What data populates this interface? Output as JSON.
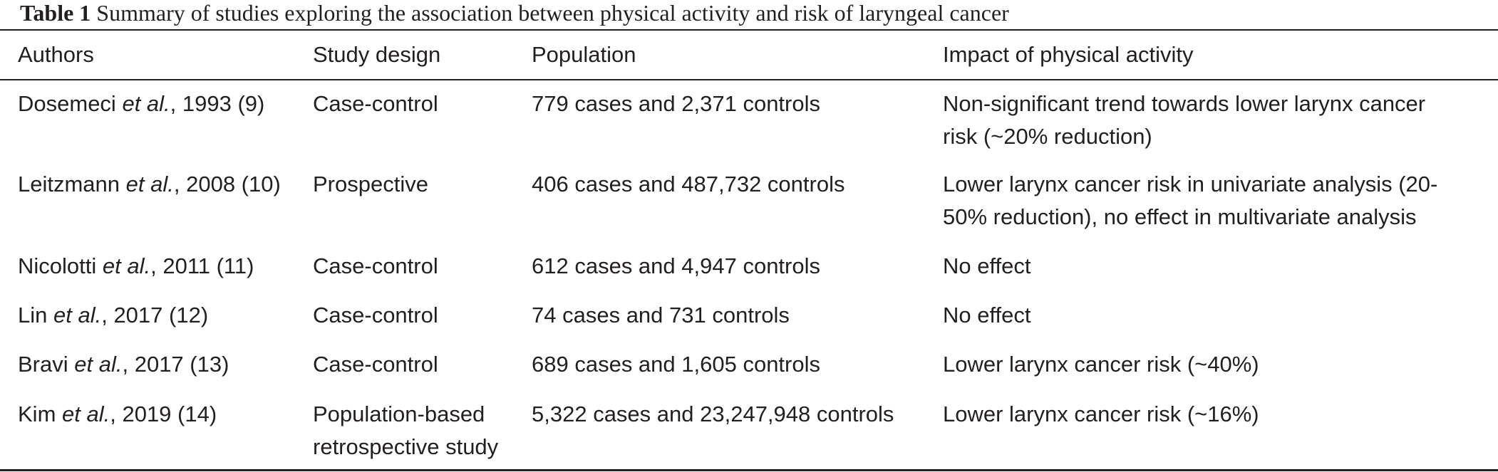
{
  "caption": {
    "label": "Table 1",
    "text": "Summary of studies exploring the association between physical activity and risk of laryngeal cancer"
  },
  "headers": [
    "Authors",
    "Study design",
    "Population",
    "Impact of physical activity"
  ],
  "rows": [
    {
      "author_name": "Dosemeci",
      "author_etal": "et al.",
      "author_rest": ", 1993 (9)",
      "design": "Case-control",
      "population": "779 cases and 2,371 controls",
      "impact_line1": "Non-significant trend towards lower larynx cancer",
      "impact_line2": "risk (~20% reduction)"
    },
    {
      "author_name": "Leitzmann",
      "author_etal": "et al.",
      "author_rest": ", 2008 (10)",
      "design": "Prospective",
      "population": "406 cases and 487,732 controls",
      "impact_line1": "Lower larynx cancer risk in univariate analysis (20-",
      "impact_line2": "50% reduction), no effect in multivariate analysis"
    },
    {
      "author_name": "Nicolotti",
      "author_etal": "et al.",
      "author_rest": ", 2011 (11)",
      "design": "Case-control",
      "population": "612 cases and 4,947 controls",
      "impact_line1": "No effect",
      "impact_line2": ""
    },
    {
      "author_name": "Lin",
      "author_etal": "et al.",
      "author_rest": ", 2017 (12)",
      "design": "Case-control",
      "population": "74 cases and 731 controls",
      "impact_line1": "No effect",
      "impact_line2": ""
    },
    {
      "author_name": "Bravi",
      "author_etal": "et al.",
      "author_rest": ", 2017 (13)",
      "design": "Case-control",
      "population": "689 cases and 1,605 controls",
      "impact_line1": "Lower larynx cancer risk (~40%)",
      "impact_line2": ""
    },
    {
      "author_name": "Kim",
      "author_etal": "et al.",
      "author_rest": ", 2019 (14)",
      "design_line1": "Population-based",
      "design_line2": "retrospective study",
      "population": "5,322 cases and 23,247,948 controls",
      "impact_line1": "Lower larynx cancer risk (~16%)",
      "impact_line2": ""
    }
  ]
}
